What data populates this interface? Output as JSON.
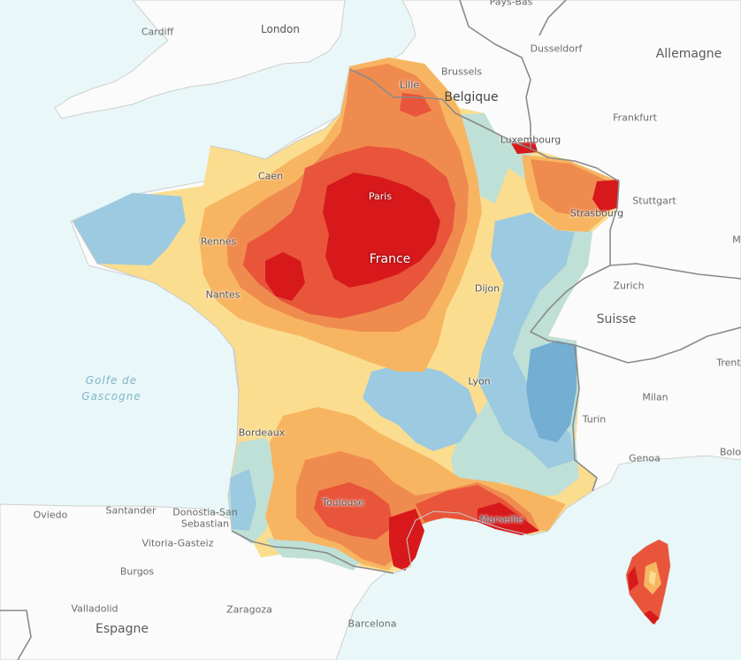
{
  "map": {
    "colors": {
      "water": "#e9f7f8",
      "land": "#fbfbfb",
      "border": "#8a8a8a",
      "coast": "#c9c9c9",
      "heat_very_high": "#d7191c",
      "heat_high": "#e8553a",
      "heat_mid_high": "#f08b4f",
      "heat_mid": "#f7b562",
      "heat_low_mid": "#fbdd8f",
      "neutral": "#f2f1c0",
      "cool_low": "#bfe0d6",
      "cool_mid": "#9ccae0",
      "cool_high": "#74aed2"
    },
    "sea_label": "Golfe de\nGascogne",
    "countries": [
      {
        "name": "France",
        "label": "France"
      },
      {
        "name": "Belgique",
        "label": "Belgique"
      },
      {
        "name": "Allemagne",
        "label": "Allemagne"
      },
      {
        "name": "Suisse",
        "label": "Suisse"
      },
      {
        "name": "Espagne",
        "label": "Espagne"
      },
      {
        "name": "Pays-Bas",
        "label": "Pays-Bas"
      }
    ],
    "cities": [
      {
        "label": "Cardiff"
      },
      {
        "label": "London"
      },
      {
        "label": "Brussels"
      },
      {
        "label": "Dusseldorf"
      },
      {
        "label": "Lille"
      },
      {
        "label": "Frankfurt"
      },
      {
        "label": "Luxembourg"
      },
      {
        "label": "Caen"
      },
      {
        "label": "Paris"
      },
      {
        "label": "Stuttgart"
      },
      {
        "label": "Strasbourg"
      },
      {
        "label": "Rennes"
      },
      {
        "label": "Nantes"
      },
      {
        "label": "Dijon"
      },
      {
        "label": "Zurich"
      },
      {
        "label": "Lyon"
      },
      {
        "label": "Milan"
      },
      {
        "label": "Trent"
      },
      {
        "label": "Turin"
      },
      {
        "label": "Bordeaux"
      },
      {
        "label": "Genoa"
      },
      {
        "label": "Bolo"
      },
      {
        "label": "Toulouse"
      },
      {
        "label": "Marseille"
      },
      {
        "label": "Oviedo"
      },
      {
        "label": "Santander"
      },
      {
        "label": "Donostia-San"
      },
      {
        "label": "Sebastian"
      },
      {
        "label": "Vitoria-Gasteiz"
      },
      {
        "label": "Burgos"
      },
      {
        "label": "Valladolid"
      },
      {
        "label": "Zaragoza"
      },
      {
        "label": "Barcelona"
      },
      {
        "label": "M"
      }
    ]
  }
}
